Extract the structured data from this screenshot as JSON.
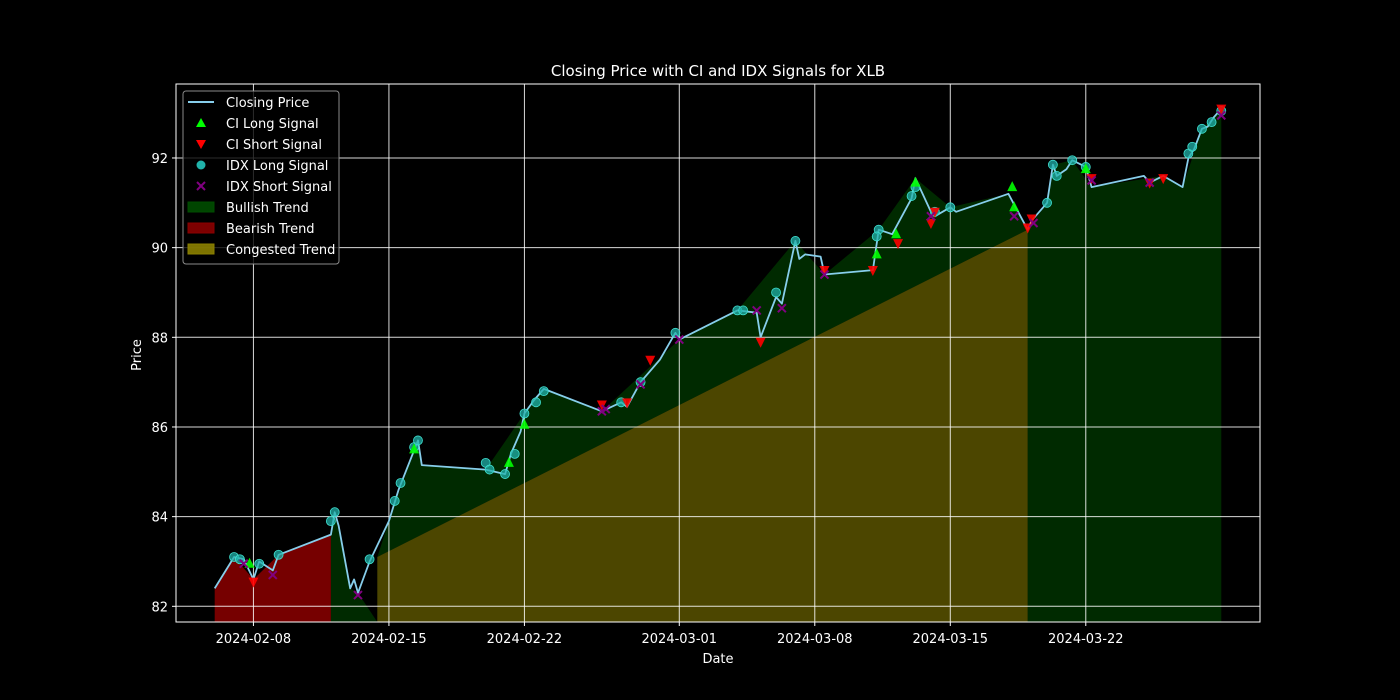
{
  "chart_data": {
    "type": "line",
    "title": "Closing Price with CI and IDX Signals for XLB",
    "xlabel": "Date",
    "ylabel": "Price",
    "x_range": [
      "2024-02-04",
      "2024-03-31"
    ],
    "ylim": [
      81.65,
      93.65
    ],
    "x_ticks": [
      "2024-02-08",
      "2024-02-15",
      "2024-02-22",
      "2024-03-01",
      "2024-03-08",
      "2024-03-15",
      "2024-03-22"
    ],
    "y_ticks": [
      82,
      84,
      86,
      88,
      90,
      92
    ],
    "grid": true,
    "legend_position": "upper-left",
    "colors": {
      "background": "#000000",
      "price_line": "#87ceeb",
      "ci_long": "#00ff00",
      "ci_short": "#ff0000",
      "idx_long": "#20b2aa",
      "idx_short": "#800080",
      "bullish": "#004d00",
      "bearish": "#8b0000",
      "congested": "#8b8000"
    },
    "legend": [
      {
        "key": "line",
        "label": "Closing Price"
      },
      {
        "key": "ci_long",
        "label": "CI Long Signal"
      },
      {
        "key": "ci_short",
        "label": "CI Short Signal"
      },
      {
        "key": "idx_long",
        "label": "IDX Long Signal"
      },
      {
        "key": "idx_short",
        "label": "IDX Short Signal"
      },
      {
        "key": "bullish",
        "label": "Bullish Trend"
      },
      {
        "key": "bearish",
        "label": "Bearish Trend"
      },
      {
        "key": "congested",
        "label": "Congested Trend"
      }
    ],
    "series": [
      {
        "name": "Closing Price",
        "points": [
          [
            "2024-02-06",
            82.4
          ],
          [
            "2024-02-07",
            83.1
          ],
          [
            "2024-02-07.5",
            83.05
          ],
          [
            "2024-02-08",
            82.6
          ],
          [
            "2024-02-08.3",
            83.0
          ],
          [
            "2024-02-09",
            82.8
          ],
          [
            "2024-02-09.3",
            83.15
          ],
          [
            "2024-02-12",
            83.6
          ],
          [
            "2024-02-12.2",
            84.1
          ],
          [
            "2024-02-12.4",
            83.8
          ],
          [
            "2024-02-13",
            82.4
          ],
          [
            "2024-02-13.2",
            82.6
          ],
          [
            "2024-02-13.4",
            82.3
          ],
          [
            "2024-02-14",
            83.0
          ],
          [
            "2024-02-15",
            83.9
          ],
          [
            "2024-02-15.5",
            84.6
          ],
          [
            "2024-02-16.5",
            85.7
          ],
          [
            "2024-02-16.7",
            85.15
          ],
          [
            "2024-02-20",
            85.05
          ],
          [
            "2024-02-21",
            84.95
          ],
          [
            "2024-02-21.3",
            85.4
          ],
          [
            "2024-02-21.8",
            85.9
          ],
          [
            "2024-02-22",
            86.3
          ],
          [
            "2024-02-22.5",
            86.6
          ],
          [
            "2024-02-23",
            86.85
          ],
          [
            "2024-02-26",
            86.35
          ],
          [
            "2024-02-27",
            86.55
          ],
          [
            "2024-02-27.3",
            86.45
          ],
          [
            "2024-02-28",
            87.0
          ],
          [
            "2024-02-29",
            87.5
          ],
          [
            "2024-02-29.8",
            88.1
          ],
          [
            "2024-03-01",
            87.95
          ],
          [
            "2024-03-04",
            88.6
          ],
          [
            "2024-03-05",
            88.55
          ],
          [
            "2024-03-05.2",
            88.0
          ],
          [
            "2024-03-06",
            88.9
          ],
          [
            "2024-03-06.3",
            88.75
          ],
          [
            "2024-03-07",
            90.15
          ],
          [
            "2024-03-07.2",
            89.75
          ],
          [
            "2024-03-07.5",
            89.85
          ],
          [
            "2024-03-08.3",
            89.8
          ],
          [
            "2024-03-08.5",
            89.4
          ],
          [
            "2024-03-11",
            89.5
          ],
          [
            "2024-03-11.3",
            90.4
          ],
          [
            "2024-03-12",
            90.3
          ],
          [
            "2024-03-13",
            91.1
          ],
          [
            "2024-03-13.2",
            91.55
          ],
          [
            "2024-03-14",
            90.8
          ],
          [
            "2024-03-14.2",
            90.7
          ],
          [
            "2024-03-15",
            90.9
          ],
          [
            "2024-03-15.3",
            90.8
          ],
          [
            "2024-03-18",
            91.2
          ],
          [
            "2024-03-19",
            90.4
          ],
          [
            "2024-03-19.2",
            90.6
          ],
          [
            "2024-03-20",
            91.0
          ],
          [
            "2024-03-20.3",
            91.85
          ],
          [
            "2024-03-20.5",
            91.6
          ],
          [
            "2024-03-21",
            91.75
          ],
          [
            "2024-03-21.3",
            91.95
          ],
          [
            "2024-03-22",
            91.8
          ],
          [
            "2024-03-22.3",
            91.35
          ],
          [
            "2024-03-25",
            91.6
          ],
          [
            "2024-03-25.3",
            91.45
          ],
          [
            "2024-03-26",
            91.6
          ],
          [
            "2024-03-27",
            91.35
          ],
          [
            "2024-03-27.3",
            92.0
          ],
          [
            "2024-03-27.6",
            92.2
          ],
          [
            "2024-03-28",
            92.65
          ],
          [
            "2024-03-28.3",
            92.7
          ],
          [
            "2024-03-28.6",
            92.9
          ],
          [
            "2024-03-29",
            93.1
          ]
        ]
      }
    ],
    "signals": {
      "ci_long": [
        [
          "2024-02-07.8",
          82.95
        ],
        [
          "2024-02-16.3",
          85.5
        ],
        [
          "2024-02-21.2",
          85.2
        ],
        [
          "2024-02-22",
          86.05
        ],
        [
          "2024-03-11.2",
          89.85
        ],
        [
          "2024-03-12.2",
          90.3
        ],
        [
          "2024-03-13.2",
          91.45
        ],
        [
          "2024-03-18.2",
          91.35
        ],
        [
          "2024-03-18.3",
          90.9
        ],
        [
          "2024-03-22",
          91.75
        ]
      ],
      "ci_short": [
        [
          "2024-02-08",
          82.55
        ],
        [
          "2024-02-26",
          86.5
        ],
        [
          "2024-02-27.3",
          86.55
        ],
        [
          "2024-02-28.5",
          87.5
        ],
        [
          "2024-03-05.2",
          87.9
        ],
        [
          "2024-03-08.5",
          89.5
        ],
        [
          "2024-03-11",
          89.5
        ],
        [
          "2024-03-12.3",
          90.1
        ],
        [
          "2024-03-14",
          90.55
        ],
        [
          "2024-03-14.2",
          90.8
        ],
        [
          "2024-03-19",
          90.45
        ],
        [
          "2024-03-19.2",
          90.65
        ],
        [
          "2024-03-22.3",
          91.55
        ],
        [
          "2024-03-25.3",
          91.45
        ],
        [
          "2024-03-26",
          91.55
        ],
        [
          "2024-03-29",
          93.1
        ]
      ],
      "idx_long": [
        [
          "2024-02-07",
          83.1
        ],
        [
          "2024-02-07.3",
          83.05
        ],
        [
          "2024-02-08.3",
          82.95
        ],
        [
          "2024-02-09.3",
          83.15
        ],
        [
          "2024-02-12",
          83.9
        ],
        [
          "2024-02-12.2",
          84.1
        ],
        [
          "2024-02-14",
          83.05
        ],
        [
          "2024-02-15.3",
          84.35
        ],
        [
          "2024-02-15.6",
          84.75
        ],
        [
          "2024-02-16.3",
          85.55
        ],
        [
          "2024-02-16.5",
          85.7
        ],
        [
          "2024-02-20",
          85.2
        ],
        [
          "2024-02-20.2",
          85.05
        ],
        [
          "2024-02-21",
          84.95
        ],
        [
          "2024-02-21.5",
          85.4
        ],
        [
          "2024-02-22",
          86.3
        ],
        [
          "2024-02-22.6",
          86.55
        ],
        [
          "2024-02-23",
          86.8
        ],
        [
          "2024-02-27",
          86.55
        ],
        [
          "2024-02-28",
          87.0
        ],
        [
          "2024-02-29.8",
          88.1
        ],
        [
          "2024-03-04",
          88.6
        ],
        [
          "2024-03-04.3",
          88.6
        ],
        [
          "2024-03-06",
          89.0
        ],
        [
          "2024-03-07",
          90.15
        ],
        [
          "2024-03-11.3",
          90.4
        ],
        [
          "2024-03-11.2",
          90.25
        ],
        [
          "2024-03-13",
          91.15
        ],
        [
          "2024-03-13.2",
          91.35
        ],
        [
          "2024-03-14.2",
          90.8
        ],
        [
          "2024-03-15",
          90.9
        ],
        [
          "2024-03-20",
          91.0
        ],
        [
          "2024-03-20.3",
          91.85
        ],
        [
          "2024-03-20.5",
          91.6
        ],
        [
          "2024-03-21.3",
          91.95
        ],
        [
          "2024-03-22",
          91.8
        ],
        [
          "2024-03-27.3",
          92.1
        ],
        [
          "2024-03-27.5",
          92.25
        ],
        [
          "2024-03-28",
          92.65
        ],
        [
          "2024-03-28.5",
          92.8
        ],
        [
          "2024-03-29",
          93.05
        ]
      ],
      "idx_short": [
        [
          "2024-02-07.5",
          82.95
        ],
        [
          "2024-02-09",
          82.7
        ],
        [
          "2024-02-13.4",
          82.25
        ],
        [
          "2024-02-26",
          86.35
        ],
        [
          "2024-02-26.2",
          86.4
        ],
        [
          "2024-02-28",
          86.95
        ],
        [
          "2024-03-01",
          87.95
        ],
        [
          "2024-03-05",
          88.6
        ],
        [
          "2024-03-06.3",
          88.65
        ],
        [
          "2024-03-08.5",
          89.4
        ],
        [
          "2024-03-14",
          90.7
        ],
        [
          "2024-03-18.3",
          90.7
        ],
        [
          "2024-03-19.3",
          90.55
        ],
        [
          "2024-03-22.3",
          91.5
        ],
        [
          "2024-03-25.3",
          91.45
        ],
        [
          "2024-03-29",
          92.95
        ]
      ]
    },
    "trend_regions": [
      {
        "trend": "bearish",
        "polygon": [
          [
            "2024-02-06",
            81.65
          ],
          [
            "2024-02-06",
            82.4
          ],
          [
            "2024-02-07",
            83.1
          ],
          [
            "2024-02-08",
            82.6
          ],
          [
            "2024-02-09.3",
            83.15
          ],
          [
            "2024-02-12",
            83.6
          ],
          [
            "2024-02-12",
            81.65
          ]
        ]
      },
      {
        "trend": "bullish",
        "polygon": [
          [
            "2024-02-12",
            81.65
          ],
          [
            "2024-02-12",
            83.6
          ],
          [
            "2024-02-12.2",
            84.1
          ],
          [
            "2024-02-13",
            82.4
          ],
          [
            "2024-02-13.4",
            82.3
          ],
          [
            "2024-02-14.4",
            81.65
          ]
        ]
      },
      {
        "trend": "bullish",
        "polygon": [
          [
            "2024-02-14.4",
            83.1
          ],
          [
            "2024-02-15",
            83.9
          ],
          [
            "2024-02-16.5",
            85.7
          ],
          [
            "2024-02-16.7",
            85.15
          ],
          [
            "2024-02-20",
            85.05
          ],
          [
            "2024-02-22",
            86.3
          ],
          [
            "2024-02-23",
            86.85
          ],
          [
            "2024-02-26",
            86.35
          ],
          [
            "2024-03-01",
            87.95
          ],
          [
            "2024-03-04",
            88.6
          ],
          [
            "2024-03-07",
            90.15
          ],
          [
            "2024-03-08.5",
            89.4
          ],
          [
            "2024-03-11.3",
            90.4
          ],
          [
            "2024-03-13.2",
            91.55
          ],
          [
            "2024-03-15",
            90.9
          ],
          [
            "2024-03-18",
            91.2
          ],
          [
            "2024-03-19",
            90.4
          ]
        ]
      },
      {
        "trend": "congested",
        "polygon": [
          [
            "2024-02-14.4",
            81.65
          ],
          [
            "2024-02-14.4",
            83.1
          ],
          [
            "2024-03-19",
            90.4
          ],
          [
            "2024-03-19",
            81.65
          ]
        ]
      },
      {
        "trend": "bullish",
        "polygon": [
          [
            "2024-03-19",
            81.65
          ],
          [
            "2024-03-19",
            90.4
          ],
          [
            "2024-03-20",
            91.0
          ],
          [
            "2024-03-20.3",
            91.85
          ],
          [
            "2024-03-21.3",
            91.95
          ],
          [
            "2024-03-22.3",
            91.35
          ],
          [
            "2024-03-26",
            91.6
          ],
          [
            "2024-03-27",
            91.35
          ],
          [
            "2024-03-28",
            92.65
          ],
          [
            "2024-03-29",
            93.1
          ],
          [
            "2024-03-29",
            81.65
          ]
        ]
      }
    ]
  }
}
